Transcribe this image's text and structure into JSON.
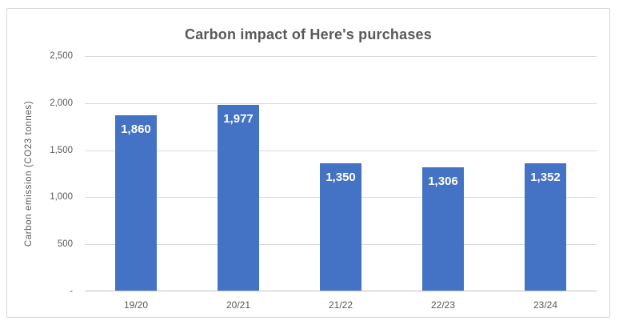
{
  "chart_data": {
    "type": "bar",
    "title": "Carbon impact of Here's purchases",
    "xlabel": "",
    "ylabel": "Carbon emission (CO23 tonnes)",
    "categories": [
      "19/20",
      "20/21",
      "21/22",
      "22/23",
      "23/24"
    ],
    "values": [
      1860,
      1977,
      1350,
      1306,
      1352
    ],
    "value_labels": [
      "1,860",
      "1,977",
      "1,350",
      "1,306",
      "1,352"
    ],
    "ylim": [
      0,
      2500
    ],
    "yticks": [
      {
        "value": 2500,
        "label": "2,500"
      },
      {
        "value": 2000,
        "label": "2,000"
      },
      {
        "value": 1500,
        "label": "1,500"
      },
      {
        "value": 1000,
        "label": "1,000"
      },
      {
        "value": 500,
        "label": "500"
      },
      {
        "value": 0,
        "label": "-"
      }
    ],
    "grid": true,
    "legend_position": "none",
    "colors": {
      "bar": "#4472C4",
      "bar_label": "#ffffff",
      "text": "#595959",
      "gridline": "#d9d9d9",
      "axis_line": "#bfbfbf",
      "panel_border": "#d7d7d7",
      "background": "#ffffff"
    }
  }
}
